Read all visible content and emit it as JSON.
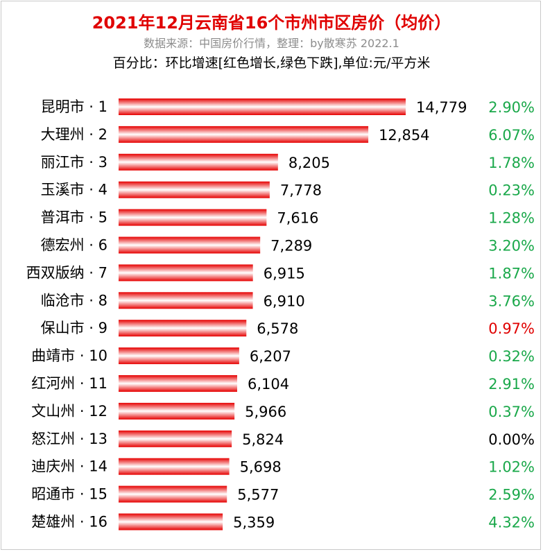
{
  "title": "2021年12月云南省16个市州市区房价（均价）",
  "subtitle": "数据来源：中国房价行情，整理：by散寒苏 2022.1",
  "note": "百分比：环比增速[红色增长,绿色下跌],单位:元/平方米",
  "colors": {
    "title": "#e00000",
    "bar_edge": "#e60000",
    "bar_center": "#ffffff",
    "increase": "#e00000",
    "decrease": "#1aa84a",
    "neutral": "#000000"
  },
  "chart_data": {
    "type": "bar",
    "orientation": "horizontal",
    "categories": [
      "昆明市 · 1",
      "大理州 · 2",
      "丽江市 · 3",
      "玉溪市 · 4",
      "普洱市 · 5",
      "德宏州 · 6",
      "西双版纳 · 7",
      "临沧市 · 8",
      "保山市 · 9",
      "曲靖市 · 10",
      "红河州 · 11",
      "文山州 · 12",
      "怒江州 · 13",
      "迪庆州 · 14",
      "昭通市 · 15",
      "楚雄州 · 16"
    ],
    "values": [
      14779,
      12854,
      8205,
      7778,
      7616,
      7289,
      6915,
      6910,
      6578,
      6207,
      6104,
      5966,
      5824,
      5698,
      5577,
      5359
    ],
    "value_labels": [
      "14,779",
      "12,854",
      "8,205",
      "7,778",
      "7,616",
      "7,289",
      "6,915",
      "6,910",
      "6,578",
      "6,207",
      "6,104",
      "5,966",
      "5,824",
      "5,698",
      "5,577",
      "5,359"
    ],
    "pct_labels": [
      "2.90%",
      "6.07%",
      "1.78%",
      "0.23%",
      "1.28%",
      "3.20%",
      "1.87%",
      "3.76%",
      "0.97%",
      "0.32%",
      "2.91%",
      "0.37%",
      "0.00%",
      "1.02%",
      "2.59%",
      "4.32%"
    ],
    "pct_status": [
      "decrease",
      "decrease",
      "decrease",
      "decrease",
      "decrease",
      "decrease",
      "decrease",
      "decrease",
      "increase",
      "decrease",
      "decrease",
      "decrease",
      "neutral",
      "decrease",
      "decrease",
      "decrease"
    ],
    "xlim": [
      0,
      14779
    ],
    "grid": false,
    "legend": "none"
  }
}
